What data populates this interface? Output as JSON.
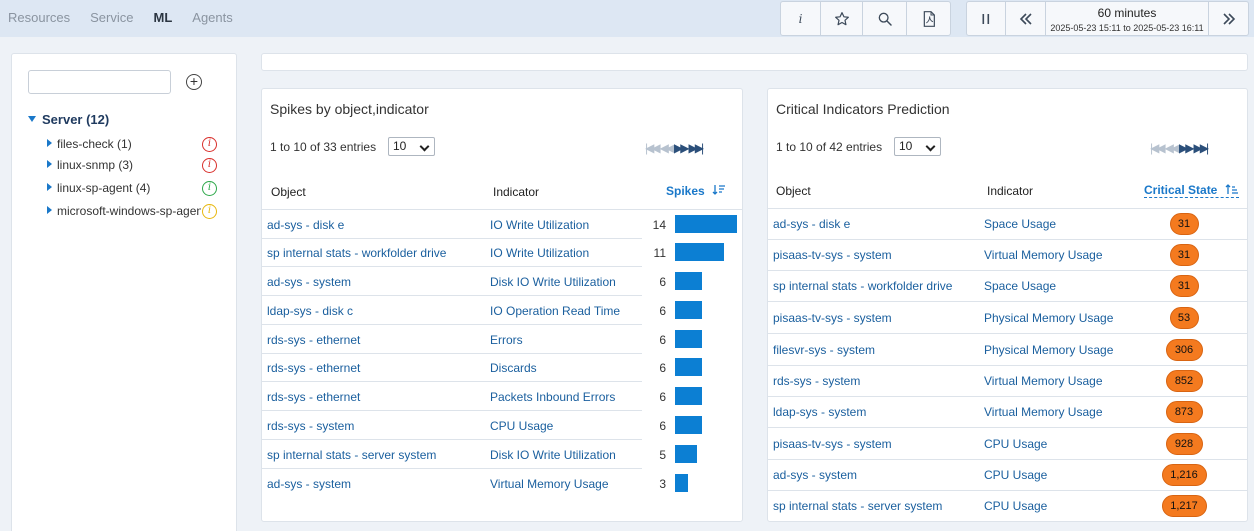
{
  "nav": {
    "tabs": [
      "Resources",
      "Service",
      "ML",
      "Agents"
    ],
    "active": "ML"
  },
  "toolbar": {
    "info_label": "i",
    "time_range_label": "60 minutes",
    "time_range_dates": "2025-05-23 15:11 to 2025-05-23 16:11"
  },
  "sidebar": {
    "search_value": "",
    "root_label": "Server (12)",
    "items": [
      {
        "label": "files-check (1)",
        "status": "error",
        "color": "#d9302c"
      },
      {
        "label": "linux-snmp (3)",
        "status": "error",
        "color": "#d9302c"
      },
      {
        "label": "linux-sp-agent (4)",
        "status": "ok",
        "color": "#2ea84a"
      },
      {
        "label": "microsoft-windows-sp-agent",
        "status": "warning",
        "color": "#e8b810"
      }
    ]
  },
  "spikes": {
    "title": "Spikes by object,indicator",
    "entries_text": "1 to 10 of 33 entries",
    "page_size": "10",
    "columns": {
      "object": "Object",
      "indicator": "Indicator",
      "spikes": "Spikes"
    },
    "max_value": 14,
    "rows": [
      {
        "object": "ad-sys - disk e",
        "indicator": "IO Write Utilization",
        "value": "14",
        "n": 14
      },
      {
        "object": "sp internal stats - workfolder drive",
        "indicator": "IO Write Utilization",
        "value": "11",
        "n": 11
      },
      {
        "object": "ad-sys - system",
        "indicator": "Disk IO Write Utilization",
        "value": "6",
        "n": 6
      },
      {
        "object": "ldap-sys - disk c",
        "indicator": "IO Operation Read Time",
        "value": "6",
        "n": 6
      },
      {
        "object": "rds-sys - ethernet",
        "indicator": "Errors",
        "value": "6",
        "n": 6
      },
      {
        "object": "rds-sys - ethernet",
        "indicator": "Discards",
        "value": "6",
        "n": 6
      },
      {
        "object": "rds-sys - ethernet",
        "indicator": "Packets Inbound Errors",
        "value": "6",
        "n": 6
      },
      {
        "object": "rds-sys - system",
        "indicator": "CPU Usage",
        "value": "6",
        "n": 6
      },
      {
        "object": "sp internal stats - server system",
        "indicator": "Disk IO Write Utilization",
        "value": "5",
        "n": 5
      },
      {
        "object": "ad-sys - system",
        "indicator": "Virtual Memory Usage",
        "value": "3",
        "n": 3
      }
    ]
  },
  "critical": {
    "title": "Critical Indicators Prediction",
    "entries_text": "1 to 10 of 42 entries",
    "page_size": "10",
    "columns": {
      "object": "Object",
      "indicator": "Indicator",
      "state": "Critical State"
    },
    "pill_color": "#f47a1f",
    "rows": [
      {
        "object": "ad-sys - disk e",
        "indicator": "Space Usage",
        "value": "31"
      },
      {
        "object": "pisaas-tv-sys - system",
        "indicator": "Virtual Memory Usage",
        "value": "31"
      },
      {
        "object": "sp internal stats - workfolder drive",
        "indicator": "Space Usage",
        "value": "31"
      },
      {
        "object": "pisaas-tv-sys - system",
        "indicator": "Physical Memory Usage",
        "value": "53"
      },
      {
        "object": "filesvr-sys - system",
        "indicator": "Physical Memory Usage",
        "value": "306"
      },
      {
        "object": "rds-sys - system",
        "indicator": "Virtual Memory Usage",
        "value": "852"
      },
      {
        "object": "ldap-sys - system",
        "indicator": "Virtual Memory Usage",
        "value": "873"
      },
      {
        "object": "pisaas-tv-sys - system",
        "indicator": "CPU Usage",
        "value": "928"
      },
      {
        "object": "ad-sys - system",
        "indicator": "CPU Usage",
        "value": "1,216"
      },
      {
        "object": "sp internal stats - server system",
        "indicator": "CPU Usage",
        "value": "1,217"
      }
    ]
  }
}
